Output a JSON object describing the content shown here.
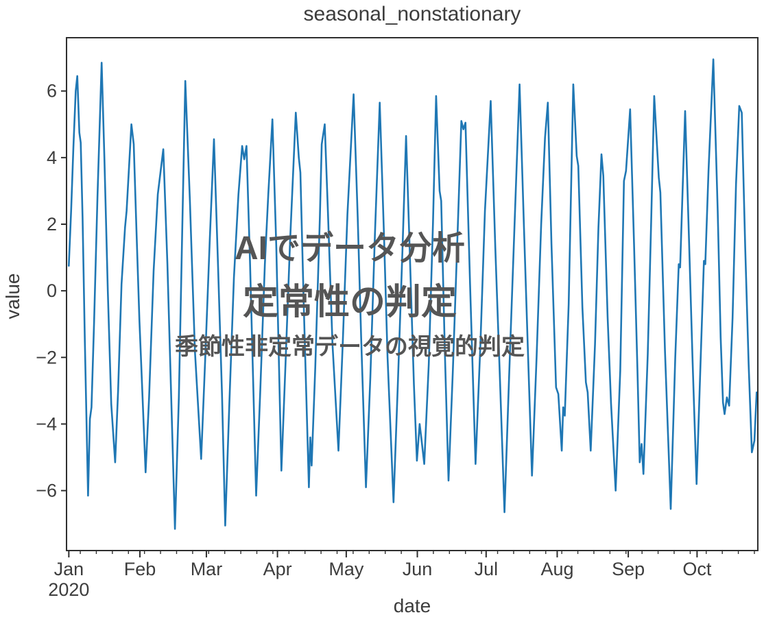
{
  "title": "seasonal_nonstationary",
  "overlay": {
    "line1": "AIでデータ分析",
    "line2": "定常性の判定",
    "line3": "季節性非定常データの視覚的判定"
  },
  "colors": {
    "line": "#1f77b4",
    "axis": "#2e2e2e",
    "tick_label": "#3d3d3d",
    "overlay_text": "#555555",
    "background": "#ffffff"
  },
  "chart_data": {
    "type": "line",
    "title": "seasonal_nonstationary",
    "xlabel": "date",
    "ylabel": "value",
    "x_unit": "days since 2020-01-01",
    "xlim": [
      -1,
      300.5
    ],
    "ylim": [
      -7.8,
      7.6
    ],
    "grid": false,
    "legend": null,
    "y_ticks": [
      6,
      4,
      2,
      0,
      -2,
      -4,
      -6
    ],
    "y_tick_labels": [
      "6",
      "4",
      "2",
      "0",
      "−2",
      "−4",
      "−6"
    ],
    "x_major_ticks": [
      {
        "day": 0,
        "label": "Jan",
        "year": "2020"
      },
      {
        "day": 31,
        "label": "Feb"
      },
      {
        "day": 60,
        "label": "Mar"
      },
      {
        "day": 91,
        "label": "Apr"
      },
      {
        "day": 121,
        "label": "May"
      },
      {
        "day": 152,
        "label": "Jun"
      },
      {
        "day": 182,
        "label": "Jul"
      },
      {
        "day": 213,
        "label": "Aug"
      },
      {
        "day": 244,
        "label": "Sep"
      },
      {
        "day": 274,
        "label": "Oct"
      }
    ],
    "x_minor_ticks": {
      "start": 5,
      "step": 7,
      "end": 299
    },
    "series": [
      {
        "name": "seasonal_nonstationary",
        "color": "#1f77b4",
        "points": [
          [
            0,
            0.75
          ],
          [
            1,
            2.4
          ],
          [
            2,
            4.3
          ],
          [
            3,
            6.0
          ],
          [
            3.7,
            6.45
          ],
          [
            4.6,
            4.75
          ],
          [
            5.2,
            4.45
          ],
          [
            6,
            2.2
          ],
          [
            7,
            -1.5
          ],
          [
            8.4,
            -6.15
          ],
          [
            9.2,
            -3.85
          ],
          [
            9.9,
            -3.5
          ],
          [
            11,
            -1.0
          ],
          [
            12.5,
            2.8
          ],
          [
            14.3,
            6.85
          ],
          [
            15.5,
            4.0
          ],
          [
            17,
            0.0
          ],
          [
            18.5,
            -3.4
          ],
          [
            20.2,
            -5.15
          ],
          [
            21.5,
            -3.0
          ],
          [
            23,
            0.2
          ],
          [
            24.5,
            1.9
          ],
          [
            25.2,
            2.4
          ],
          [
            27.3,
            5.0
          ],
          [
            28.3,
            4.4
          ],
          [
            29.5,
            1.8
          ],
          [
            30.8,
            -0.9
          ],
          [
            31.3,
            -1.75
          ],
          [
            33.5,
            -5.45
          ],
          [
            35,
            -3.2
          ],
          [
            37,
            0.6
          ],
          [
            38.8,
            2.9
          ],
          [
            41.2,
            4.25
          ],
          [
            43,
            0.8
          ],
          [
            44.5,
            -2.8
          ],
          [
            46.3,
            -7.15
          ],
          [
            48,
            -3.2
          ],
          [
            49.5,
            1.9
          ],
          [
            50.8,
            6.3
          ],
          [
            52.8,
            2.7
          ],
          [
            53.4,
            1.45
          ],
          [
            55,
            -1.8
          ],
          [
            57.7,
            -5.05
          ],
          [
            59.5,
            -2.0
          ],
          [
            61.5,
            1.6
          ],
          [
            63.3,
            4.55
          ],
          [
            65,
            0.9
          ],
          [
            66.8,
            -3.1
          ],
          [
            68.2,
            -7.05
          ],
          [
            70,
            -3.4
          ],
          [
            72,
            0.4
          ],
          [
            74,
            2.9
          ],
          [
            75.6,
            4.35
          ],
          [
            76.5,
            3.95
          ],
          [
            77.5,
            4.35
          ],
          [
            79,
            0.9
          ],
          [
            80.5,
            -3.0
          ],
          [
            81.7,
            -6.15
          ],
          [
            83.5,
            -3.0
          ],
          [
            85.5,
            0.8
          ],
          [
            87,
            2.9
          ],
          [
            88.8,
            5.15
          ],
          [
            90.5,
            1.3
          ],
          [
            92.7,
            -5.4
          ],
          [
            94.5,
            -2.2
          ],
          [
            96.5,
            1.5
          ],
          [
            99,
            5.35
          ],
          [
            100.3,
            4.0
          ],
          [
            101,
            3.55
          ],
          [
            102.5,
            -0.5
          ],
          [
            104.7,
            -5.9
          ],
          [
            105.3,
            -4.4
          ],
          [
            105.9,
            -5.25
          ],
          [
            107.5,
            -2.3
          ],
          [
            109.5,
            2.2
          ],
          [
            110.3,
            4.4
          ],
          [
            111.6,
            5.0
          ],
          [
            113,
            2.4
          ],
          [
            115,
            -1.6
          ],
          [
            117.6,
            -4.8
          ],
          [
            119.5,
            -1.5
          ],
          [
            121.5,
            2.3
          ],
          [
            124.2,
            5.9
          ],
          [
            126,
            2.2
          ],
          [
            127.5,
            -1.4
          ],
          [
            129.6,
            -5.9
          ],
          [
            131.5,
            -2.6
          ],
          [
            133.5,
            1.7
          ],
          [
            135.6,
            5.65
          ],
          [
            137.5,
            1.6
          ],
          [
            139,
            -2.0
          ],
          [
            141.6,
            -6.35
          ],
          [
            143.5,
            -2.8
          ],
          [
            145.5,
            1.2
          ],
          [
            147.1,
            4.65
          ],
          [
            149,
            0.5
          ],
          [
            150.5,
            -2.8
          ],
          [
            151.8,
            -5.1
          ],
          [
            153,
            -4.0
          ],
          [
            153.8,
            -4.45
          ],
          [
            155,
            -5.2
          ],
          [
            157,
            -2.2
          ],
          [
            158.8,
            2.0
          ],
          [
            160.2,
            5.85
          ],
          [
            161.7,
            3.0
          ],
          [
            162.4,
            2.7
          ],
          [
            164,
            -1.8
          ],
          [
            165.6,
            -5.7
          ],
          [
            167.5,
            -2.4
          ],
          [
            169.5,
            1.6
          ],
          [
            171.2,
            5.1
          ],
          [
            172.1,
            4.85
          ],
          [
            173,
            5.05
          ],
          [
            175,
            0.2
          ],
          [
            177.4,
            -5.2
          ],
          [
            179.5,
            -1.6
          ],
          [
            181.5,
            2.4
          ],
          [
            184,
            5.7
          ],
          [
            186,
            1.3
          ],
          [
            188,
            -2.6
          ],
          [
            190,
            -6.65
          ],
          [
            192,
            -2.6
          ],
          [
            194,
            1.2
          ],
          [
            196.6,
            6.2
          ],
          [
            198.5,
            1.9
          ],
          [
            200.5,
            -2.4
          ],
          [
            202,
            -5.55
          ],
          [
            204,
            -2.0
          ],
          [
            206,
            2.0
          ],
          [
            207.7,
            4.6
          ],
          [
            208.9,
            5.65
          ],
          [
            210.5,
            1.4
          ],
          [
            212.5,
            -2.9
          ],
          [
            213.5,
            -3.1
          ],
          [
            215,
            -4.8
          ],
          [
            215.6,
            -3.5
          ],
          [
            216.3,
            -3.75
          ],
          [
            218,
            -0.4
          ],
          [
            220,
            6.2
          ],
          [
            221.5,
            4.05
          ],
          [
            222.2,
            3.75
          ],
          [
            224,
            -0.5
          ],
          [
            225.5,
            -2.75
          ],
          [
            226.3,
            -3.05
          ],
          [
            227.6,
            -4.8
          ],
          [
            229.5,
            -1.6
          ],
          [
            231,
            1.9
          ],
          [
            232.3,
            4.1
          ],
          [
            233.1,
            3.45
          ],
          [
            235,
            -0.8
          ],
          [
            236.5,
            -3.4
          ],
          [
            238.5,
            -6.0
          ],
          [
            240.5,
            -2.4
          ],
          [
            242.1,
            3.3
          ],
          [
            243,
            3.6
          ],
          [
            244.8,
            5.45
          ],
          [
            246.5,
            1.4
          ],
          [
            248,
            -2.4
          ],
          [
            249,
            -5.15
          ],
          [
            249.8,
            -4.6
          ],
          [
            250.6,
            -5.5
          ],
          [
            252.5,
            -1.9
          ],
          [
            254,
            2.1
          ],
          [
            255.3,
            5.85
          ],
          [
            257.3,
            3.4
          ],
          [
            258,
            2.95
          ],
          [
            260,
            -1.8
          ],
          [
            262.5,
            -6.55
          ],
          [
            264.5,
            -2.0
          ],
          [
            266,
            0.8
          ],
          [
            266.6,
            0.7
          ],
          [
            268.8,
            5.4
          ],
          [
            270.5,
            1.5
          ],
          [
            272,
            -2.0
          ],
          [
            273.8,
            -5.8
          ],
          [
            275.5,
            -2.2
          ],
          [
            277,
            0.9
          ],
          [
            277.6,
            0.8
          ],
          [
            279,
            3.6
          ],
          [
            281.1,
            6.95
          ],
          [
            283,
            2.4
          ],
          [
            284.3,
            -1.4
          ],
          [
            285.3,
            -3.35
          ],
          [
            286,
            -3.7
          ],
          [
            287,
            -3.2
          ],
          [
            288,
            -3.45
          ],
          [
            289.5,
            -0.8
          ],
          [
            291,
            3.2
          ],
          [
            292.4,
            5.55
          ],
          [
            293.5,
            5.35
          ],
          [
            295,
            1.3
          ],
          [
            296.5,
            -2.2
          ],
          [
            297.9,
            -4.85
          ],
          [
            299,
            -4.5
          ],
          [
            300,
            -3.05
          ]
        ]
      }
    ]
  }
}
